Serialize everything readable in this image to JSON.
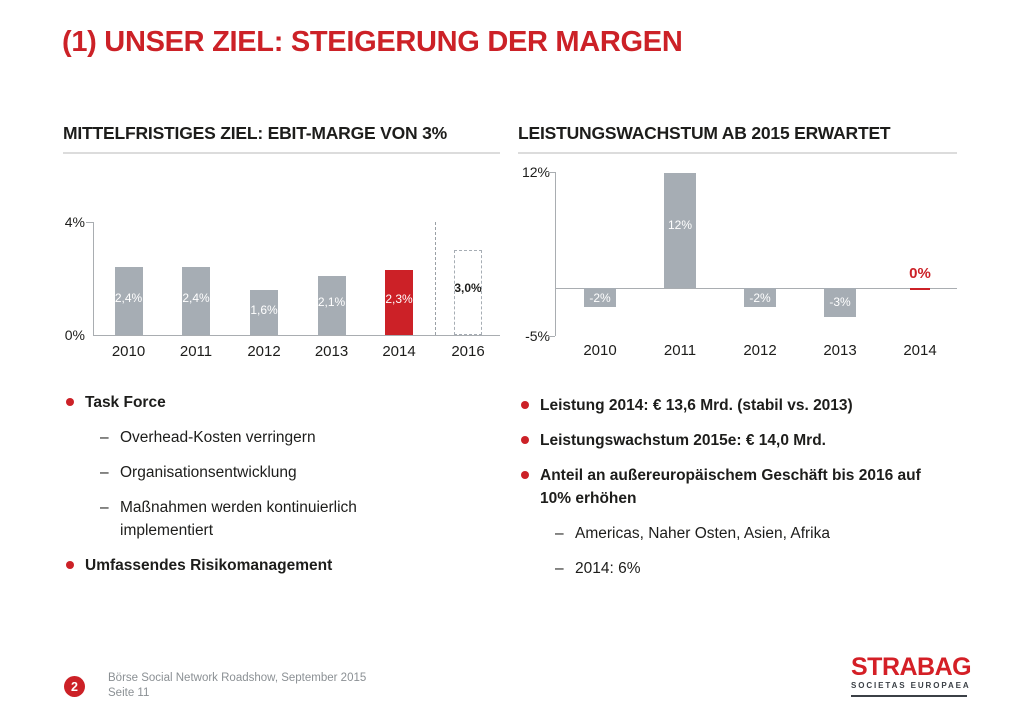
{
  "title": "(1) UNSER ZIEL: STEIGERUNG DER MARGEN",
  "colors": {
    "accent_red": "#cc2127",
    "bar_gray": "#a6adb4",
    "text_dark": "#1d1d1b",
    "footer_gray": "#8b9094",
    "axis_gray": "#a9adb1"
  },
  "chart_data": [
    {
      "type": "bar",
      "title": "MITTELFRISTIGES ZIEL: EBIT-MARGE VON 3%",
      "categories": [
        "2010",
        "2011",
        "2012",
        "2013",
        "2014",
        "2016"
      ],
      "values": [
        2.4,
        2.4,
        1.6,
        2.1,
        2.3,
        3.0
      ],
      "value_labels": [
        "2,4%",
        "2,4%",
        "1,6%",
        "2,1%",
        "2,3%",
        "3,0%"
      ],
      "bar_styles": [
        "solid-gray",
        "solid-gray",
        "solid-gray",
        "solid-gray",
        "solid-red",
        "dashed-outline"
      ],
      "ylim": [
        0,
        4
      ],
      "ytick_labels": [
        "4%",
        "0%"
      ],
      "grid": false,
      "legend": false,
      "dashed_separator_before_category": "2016",
      "xlabel": "",
      "ylabel": ""
    },
    {
      "type": "bar",
      "title": "LEISTUNGSWACHSTUM AB 2015 ERWARTET",
      "categories": [
        "2010",
        "2011",
        "2012",
        "2013",
        "2014"
      ],
      "values": [
        -2,
        12,
        -2,
        -3,
        0
      ],
      "value_labels": [
        "-2%",
        "12%",
        "-2%",
        "-3%",
        "0%"
      ],
      "bar_styles": [
        "solid-gray",
        "solid-gray",
        "solid-gray",
        "solid-gray",
        "solid-red"
      ],
      "ylim": [
        -5,
        12
      ],
      "ytick_labels": [
        "12%",
        "-5%"
      ],
      "grid": false,
      "legend": false,
      "zero_label_color": "#cc2127",
      "xlabel": "",
      "ylabel": ""
    }
  ],
  "left_section": {
    "bullets": [
      "Task Force",
      "Overhead-Kosten verringern",
      "Organisationsentwicklung",
      "Maßnahmen werden kontinuierlich implementiert",
      "Umfassendes Risikomanagement"
    ]
  },
  "right_section": {
    "bullets": [
      "Leistung 2014: € 13,6 Mrd. (stabil vs. 2013)",
      "Leistungswachstum 2015e: € 14,0 Mrd.",
      "Anteil an außereuropäischem Geschäft bis 2016 auf 10% erhöhen",
      "Americas, Naher Osten, Asien, Afrika",
      "2014: 6%"
    ]
  },
  "footer": {
    "page_badge": "2",
    "line1": "Börse Social Network Roadshow, September 2015",
    "line2": "Seite 11",
    "logo_main": "STRABAG",
    "logo_sub": "SOCIETAS EUROPAEA"
  }
}
